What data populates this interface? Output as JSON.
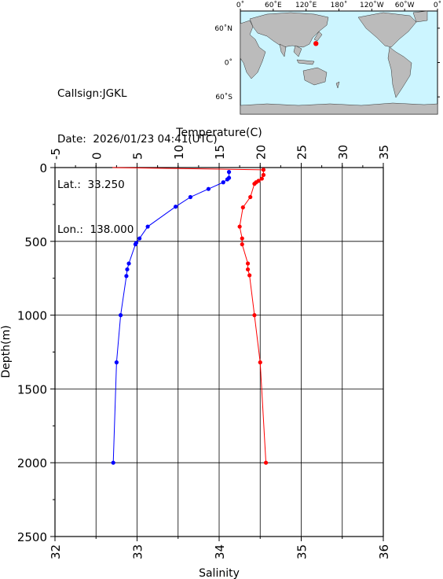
{
  "station": {
    "callsign": "Callsign:JGKL",
    "date": "Date:  2026/01/23 04:41(UTC)",
    "lat": "Lat.:  33.250",
    "lon": "Lon.:  138.000"
  },
  "map": {
    "top_labels": [
      "0˚",
      "60˚E",
      "120˚E",
      "180˚",
      "120˚W",
      "60˚W",
      "0˚"
    ],
    "right_labels": [
      "60˚N",
      "0˚",
      "60˚S"
    ],
    "ocean_color": "#ccf5ff",
    "land_color": "#bbbbbb",
    "marker_color": "#ff0000",
    "marker_position": {
      "lon": 138.0,
      "lat": 33.25
    }
  },
  "chart_data": {
    "type": "line",
    "ylabel": "Depth(m)",
    "ylim": [
      2500,
      0
    ],
    "yticks": [
      "0",
      "500",
      "1000",
      "1500",
      "2000",
      "2500"
    ],
    "top_axis": {
      "label": "Temperature(C)",
      "lim": [
        -5,
        35
      ],
      "ticks": [
        "-5",
        "0",
        "5",
        "10",
        "15",
        "20",
        "25",
        "30",
        "35"
      ]
    },
    "bottom_axis": {
      "label": "Salinity",
      "lim": [
        32,
        36
      ],
      "ticks": [
        "32",
        "33",
        "34",
        "35",
        "36"
      ]
    },
    "grid": true,
    "series": [
      {
        "axis": "top",
        "color": "#ff0000",
        "points": [
          {
            "x": 20.4,
            "y": 15
          },
          {
            "x": 20.4,
            "y": 50
          },
          {
            "x": 20.2,
            "y": 75
          },
          {
            "x": 19.8,
            "y": 90
          },
          {
            "x": 19.5,
            "y": 100
          },
          {
            "x": 19.3,
            "y": 110
          },
          {
            "x": 18.8,
            "y": 200
          },
          {
            "x": 17.9,
            "y": 270
          },
          {
            "x": 17.5,
            "y": 400
          },
          {
            "x": 17.8,
            "y": 480
          },
          {
            "x": 17.8,
            "y": 520
          },
          {
            "x": 18.5,
            "y": 650
          },
          {
            "x": 18.5,
            "y": 690
          },
          {
            "x": 18.7,
            "y": 730
          },
          {
            "x": 19.3,
            "y": 1000
          },
          {
            "x": 20.0,
            "y": 1320
          },
          {
            "x": 20.7,
            "y": 2000
          }
        ],
        "surface_line": {
          "x": 2.0,
          "y": 0
        }
      },
      {
        "axis": "bottom",
        "color": "#0000ff",
        "points": [
          {
            "x": 34.12,
            "y": 30
          },
          {
            "x": 34.12,
            "y": 70
          },
          {
            "x": 34.1,
            "y": 80
          },
          {
            "x": 34.05,
            "y": 100
          },
          {
            "x": 33.87,
            "y": 145
          },
          {
            "x": 33.65,
            "y": 200
          },
          {
            "x": 33.47,
            "y": 265
          },
          {
            "x": 33.13,
            "y": 400
          },
          {
            "x": 33.03,
            "y": 480
          },
          {
            "x": 32.99,
            "y": 510
          },
          {
            "x": 32.98,
            "y": 520
          },
          {
            "x": 32.9,
            "y": 650
          },
          {
            "x": 32.88,
            "y": 690
          },
          {
            "x": 32.87,
            "y": 735
          },
          {
            "x": 32.8,
            "y": 1000
          },
          {
            "x": 32.75,
            "y": 1320
          },
          {
            "x": 32.71,
            "y": 2000
          }
        ]
      }
    ]
  }
}
